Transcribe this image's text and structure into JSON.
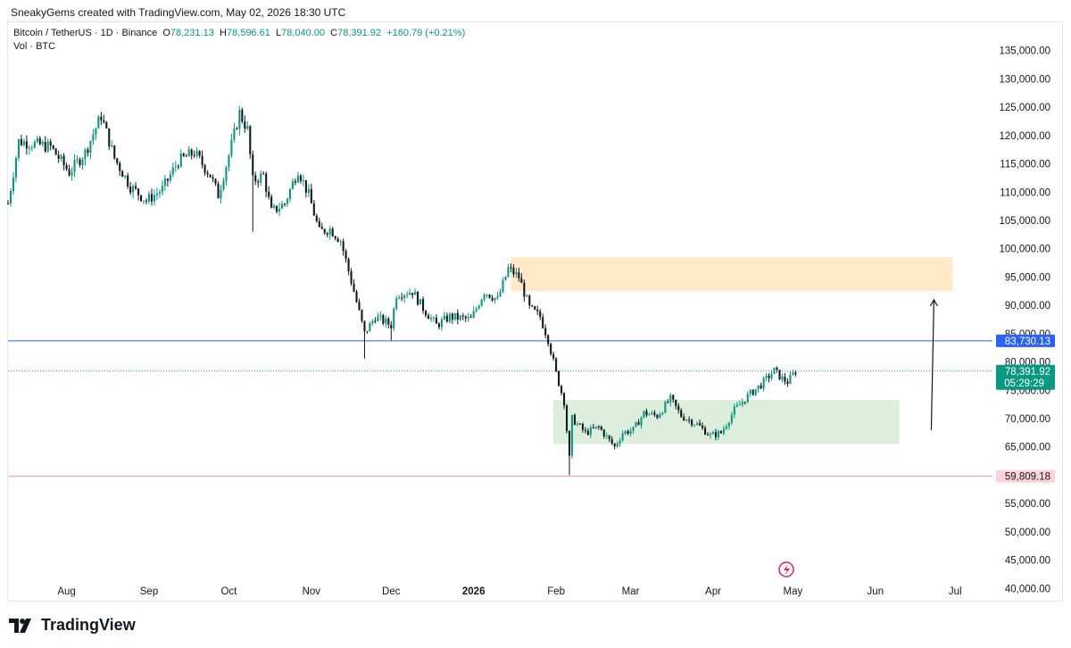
{
  "header": {
    "text": "SneakyGems created with TradingView.com, May 02, 2026 18:30 UTC"
  },
  "legend": {
    "symbol": "Bitcoin / TetherUS · 1D · Binance",
    "o_label": "O",
    "o_value": "78,231.13",
    "h_label": "H",
    "h_value": "78,596.61",
    "l_label": "L",
    "l_value": "78,040.00",
    "c_label": "C",
    "c_value": "78,391.92",
    "change": "+160.79 (+0.21%)",
    "volume": "Vol · BTC"
  },
  "footer": {
    "brand": "TradingView"
  },
  "colors": {
    "up": "#089981",
    "down": "#131722",
    "grid": "#f0f3fa",
    "support_line": "#2962ff",
    "low_line": "#f7525f",
    "supply_zone": "#ffe9c7",
    "demand_zone": "#dcefdc",
    "current_price": "#089981"
  },
  "chart_data": {
    "type": "candlestick",
    "title": "Bitcoin / TetherUS · 1D · Binance",
    "xlabel": "",
    "ylabel": "",
    "ylim": [
      38000,
      140000
    ],
    "y_ticks": [
      40000,
      45000,
      50000,
      55000,
      60000,
      65000,
      70000,
      75000,
      80000,
      85000,
      90000,
      95000,
      100000,
      105000,
      110000,
      115000,
      120000,
      125000,
      130000,
      135000
    ],
    "y_tick_labels": [
      "40,000.00",
      "45,000.00",
      "50,000.00",
      "55,000.00",
      "60,000.00",
      "65,000.00",
      "70,000.00",
      "75,000.00",
      "80,000.00",
      "85,000.00",
      "90,000.00",
      "95,000.00",
      "100,000.00",
      "105,000.00",
      "110,000.00",
      "115,000.00",
      "120,000.00",
      "125,000.00",
      "130,000.00",
      "135,000.00"
    ],
    "x_range": [
      "2025-07-10",
      "2026-07-15"
    ],
    "x_ticks": [
      {
        "date": "2025-08-01",
        "label": "Aug"
      },
      {
        "date": "2025-09-01",
        "label": "Sep"
      },
      {
        "date": "2025-10-01",
        "label": "Oct"
      },
      {
        "date": "2025-11-01",
        "label": "Nov"
      },
      {
        "date": "2025-12-01",
        "label": "Dec"
      },
      {
        "date": "2026-01-01",
        "label": "2026",
        "bold": true
      },
      {
        "date": "2026-02-01",
        "label": "Feb"
      },
      {
        "date": "2026-03-01",
        "label": "Mar"
      },
      {
        "date": "2026-04-01",
        "label": "Apr"
      },
      {
        "date": "2026-05-01",
        "label": "May"
      },
      {
        "date": "2026-06-01",
        "label": "Jun"
      },
      {
        "date": "2026-07-01",
        "label": "Jul"
      }
    ],
    "price_path": [
      [
        "2025-07-10",
        108000
      ],
      [
        "2025-07-14",
        119000
      ],
      [
        "2025-07-20",
        118500
      ],
      [
        "2025-07-26",
        118000
      ],
      [
        "2025-08-02",
        113500
      ],
      [
        "2025-08-08",
        117000
      ],
      [
        "2025-08-14",
        123500
      ],
      [
        "2025-08-19",
        116000
      ],
      [
        "2025-08-25",
        111000
      ],
      [
        "2025-08-31",
        108500
      ],
      [
        "2025-09-06",
        110500
      ],
      [
        "2025-09-12",
        115500
      ],
      [
        "2025-09-18",
        117000
      ],
      [
        "2025-09-24",
        113000
      ],
      [
        "2025-09-27",
        109500
      ],
      [
        "2025-10-01",
        116500
      ],
      [
        "2025-10-05",
        124000
      ],
      [
        "2025-10-08",
        121000
      ],
      [
        "2025-10-10",
        112000
      ],
      [
        "2025-10-14",
        113000
      ],
      [
        "2025-10-17",
        106500
      ],
      [
        "2025-10-22",
        108000
      ],
      [
        "2025-10-27",
        114000
      ],
      [
        "2025-10-31",
        109500
      ],
      [
        "2025-11-04",
        103000
      ],
      [
        "2025-11-08",
        103500
      ],
      [
        "2025-11-12",
        101500
      ],
      [
        "2025-11-17",
        92500
      ],
      [
        "2025-11-21",
        85000
      ],
      [
        "2025-11-25",
        88000
      ],
      [
        "2025-12-01",
        86500
      ],
      [
        "2025-12-03",
        92000
      ],
      [
        "2025-12-09",
        92500
      ],
      [
        "2025-12-13",
        89500
      ],
      [
        "2025-12-18",
        86500
      ],
      [
        "2025-12-23",
        88000
      ],
      [
        "2025-12-31",
        87500
      ],
      [
        "2026-01-05",
        92500
      ],
      [
        "2026-01-10",
        91000
      ],
      [
        "2026-01-14",
        96500
      ],
      [
        "2026-01-18",
        95000
      ],
      [
        "2026-01-22",
        89500
      ],
      [
        "2026-01-26",
        88000
      ],
      [
        "2026-01-29",
        84000
      ],
      [
        "2026-02-01",
        78000
      ],
      [
        "2026-02-04",
        73000
      ],
      [
        "2026-02-06",
        63000
      ],
      [
        "2026-02-07",
        70000
      ],
      [
        "2026-02-12",
        67500
      ],
      [
        "2026-02-17",
        68500
      ],
      [
        "2026-02-23",
        65000
      ],
      [
        "2026-02-26",
        67500
      ],
      [
        "2026-03-02",
        68000
      ],
      [
        "2026-03-06",
        71000
      ],
      [
        "2026-03-11",
        70500
      ],
      [
        "2026-03-16",
        73500
      ],
      [
        "2026-03-20",
        70500
      ],
      [
        "2026-03-26",
        69000
      ],
      [
        "2026-03-31",
        67000
      ],
      [
        "2026-04-04",
        67500
      ],
      [
        "2026-04-09",
        71500
      ],
      [
        "2026-04-14",
        74000
      ],
      [
        "2026-04-19",
        76000
      ],
      [
        "2026-04-24",
        78500
      ],
      [
        "2026-04-27",
        77000
      ],
      [
        "2026-04-29",
        76500
      ],
      [
        "2026-05-02",
        78391.92
      ]
    ],
    "spikes": [
      {
        "date": "2025-10-10",
        "low": 103000
      },
      {
        "date": "2025-11-21",
        "low": 80600
      },
      {
        "date": "2025-12-01",
        "low": 83800
      },
      {
        "date": "2026-02-06",
        "low": 60000
      }
    ],
    "annotations": {
      "supply_zone": {
        "from": "2026-01-15",
        "to": "2026-06-30",
        "low": 92500,
        "high": 98500
      },
      "demand_zone": {
        "from": "2026-01-31",
        "to": "2026-06-10",
        "low": 65500,
        "high": 73300
      },
      "support_line": {
        "price": 83730.13,
        "label": "83,730.13"
      },
      "low_line": {
        "price": 59809.18,
        "label": "59,809.18"
      },
      "current_price": {
        "price": 78391.92,
        "label": "78,391.92",
        "countdown": "05:29:29"
      },
      "arrow": {
        "from_date": "2026-06-22",
        "from_price": 68000,
        "to_date": "2026-06-23",
        "to_price": 91000
      }
    }
  }
}
